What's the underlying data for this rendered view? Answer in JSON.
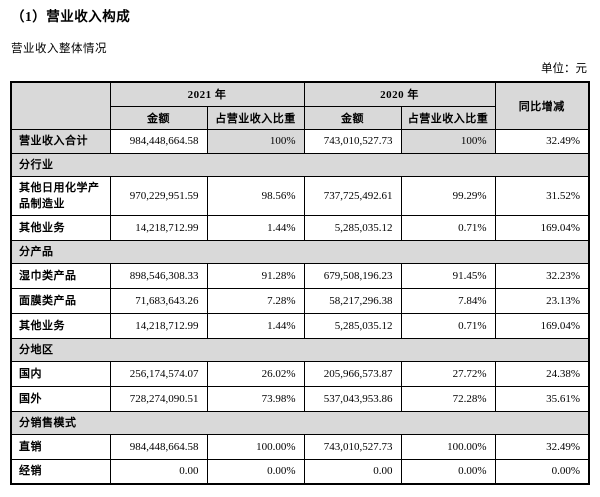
{
  "page": {
    "title": "（1）营业收入构成",
    "subtitle": "营业收入整体情况",
    "unit_label": "单位：元"
  },
  "colors": {
    "header_fill": "#d9d9d9",
    "border": "#000000",
    "background": "#ffffff"
  },
  "table": {
    "header": {
      "year_2021": "2021 年",
      "year_2020": "2020 年",
      "amount_2021": "金额",
      "ratio_2021": "占营业收入比重",
      "amount_2020": "金额",
      "ratio_2020": "占营业收入比重",
      "yoy": "同比增减"
    },
    "rows": [
      {
        "type": "total",
        "label": "营业收入合计",
        "a2021": "984,448,664.58",
        "r2021": "100%",
        "a2020": "743,010,527.73",
        "r2020": "100%",
        "yoy": "32.49%"
      },
      {
        "type": "section",
        "label": "分行业"
      },
      {
        "type": "data",
        "label": "其他日用化学产品制造业",
        "a2021": "970,229,951.59",
        "r2021": "98.56%",
        "a2020": "737,725,492.61",
        "r2020": "99.29%",
        "yoy": "31.52%"
      },
      {
        "type": "data",
        "label": "其他业务",
        "a2021": "14,218,712.99",
        "r2021": "1.44%",
        "a2020": "5,285,035.12",
        "r2020": "0.71%",
        "yoy": "169.04%"
      },
      {
        "type": "section",
        "label": "分产品"
      },
      {
        "type": "data",
        "label": "湿巾类产品",
        "a2021": "898,546,308.33",
        "r2021": "91.28%",
        "a2020": "679,508,196.23",
        "r2020": "91.45%",
        "yoy": "32.23%"
      },
      {
        "type": "data",
        "label": "面膜类产品",
        "a2021": "71,683,643.26",
        "r2021": "7.28%",
        "a2020": "58,217,296.38",
        "r2020": "7.84%",
        "yoy": "23.13%"
      },
      {
        "type": "data",
        "label": "其他业务",
        "a2021": "14,218,712.99",
        "r2021": "1.44%",
        "a2020": "5,285,035.12",
        "r2020": "0.71%",
        "yoy": "169.04%"
      },
      {
        "type": "section",
        "label": "分地区"
      },
      {
        "type": "data",
        "label": "国内",
        "a2021": "256,174,574.07",
        "r2021": "26.02%",
        "a2020": "205,966,573.87",
        "r2020": "27.72%",
        "yoy": "24.38%"
      },
      {
        "type": "data",
        "label": "国外",
        "a2021": "728,274,090.51",
        "r2021": "73.98%",
        "a2020": "537,043,953.86",
        "r2020": "72.28%",
        "yoy": "35.61%"
      },
      {
        "type": "section",
        "label": "分销售模式"
      },
      {
        "type": "data",
        "label": "直销",
        "a2021": "984,448,664.58",
        "r2021": "100.00%",
        "a2020": "743,010,527.73",
        "r2020": "100.00%",
        "yoy": "32.49%"
      },
      {
        "type": "data",
        "label": "经销",
        "a2021": "0.00",
        "r2021": "0.00%",
        "a2020": "0.00",
        "r2020": "0.00%",
        "yoy": "0.00%"
      }
    ]
  }
}
